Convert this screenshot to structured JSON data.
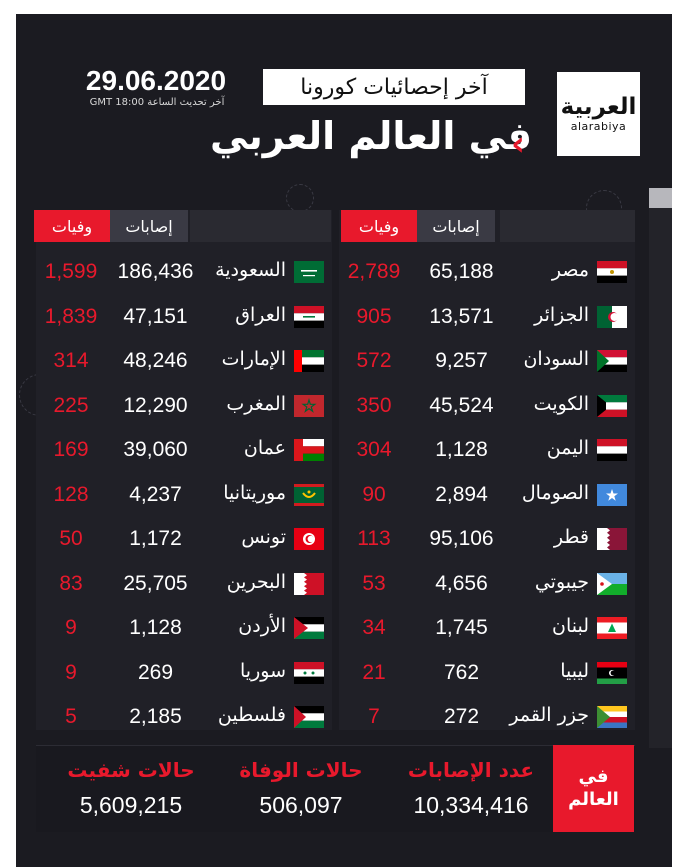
{
  "header": {
    "logo_arabic": "العربية",
    "logo_latin": "alarabiya",
    "tag": "آخر إحصائيات كورونا",
    "title": "في العالم العربي",
    "date": "29.06.2020",
    "update_line": "آخر تحديث الساعة GMT 18:00"
  },
  "column_headers": {
    "cases": "إصابات",
    "deaths": "وفيات"
  },
  "right_table": [
    {
      "country": "مصر",
      "cases": "65,188",
      "deaths": "2,789",
      "flag": "egypt-flag-icon"
    },
    {
      "country": "الجزائر",
      "cases": "13,571",
      "deaths": "905",
      "flag": "algeria-flag-icon"
    },
    {
      "country": "السودان",
      "cases": "9,257",
      "deaths": "572",
      "flag": "sudan-flag-icon"
    },
    {
      "country": "الكويت",
      "cases": "45,524",
      "deaths": "350",
      "flag": "kuwait-flag-icon"
    },
    {
      "country": "اليمن",
      "cases": "1,128",
      "deaths": "304",
      "flag": "yemen-flag-icon"
    },
    {
      "country": "الصومال",
      "cases": "2,894",
      "deaths": "90",
      "flag": "somalia-flag-icon"
    },
    {
      "country": "قطر",
      "cases": "95,106",
      "deaths": "113",
      "flag": "qatar-flag-icon"
    },
    {
      "country": "جيبوتي",
      "cases": "4,656",
      "deaths": "53",
      "flag": "djibouti-flag-icon"
    },
    {
      "country": "لبنان",
      "cases": "1,745",
      "deaths": "34",
      "flag": "lebanon-flag-icon"
    },
    {
      "country": "ليبيا",
      "cases": "762",
      "deaths": "21",
      "flag": "libya-flag-icon"
    },
    {
      "country": "جزر القمر",
      "cases": "272",
      "deaths": "7",
      "flag": "comoros-flag-icon"
    }
  ],
  "left_table": [
    {
      "country": "السعودية",
      "cases": "186,436",
      "deaths": "1,599",
      "flag": "saudi-flag-icon"
    },
    {
      "country": "العراق",
      "cases": "47,151",
      "deaths": "1,839",
      "flag": "iraq-flag-icon"
    },
    {
      "country": "الإمارات",
      "cases": "48,246",
      "deaths": "314",
      "flag": "uae-flag-icon"
    },
    {
      "country": "المغرب",
      "cases": "12,290",
      "deaths": "225",
      "flag": "morocco-flag-icon"
    },
    {
      "country": "عمان",
      "cases": "39,060",
      "deaths": "169",
      "flag": "oman-flag-icon"
    },
    {
      "country": "موريتانيا",
      "cases": "4,237",
      "deaths": "128",
      "flag": "mauritania-flag-icon"
    },
    {
      "country": "تونس",
      "cases": "1,172",
      "deaths": "50",
      "flag": "tunisia-flag-icon"
    },
    {
      "country": "البحرين",
      "cases": "25,705",
      "deaths": "83",
      "flag": "bahrain-flag-icon"
    },
    {
      "country": "الأردن",
      "cases": "1,128",
      "deaths": "9",
      "flag": "jordan-flag-icon"
    },
    {
      "country": "سوريا",
      "cases": "269",
      "deaths": "9",
      "flag": "syria-flag-icon"
    },
    {
      "country": "فلسطين",
      "cases": "2,185",
      "deaths": "5",
      "flag": "palestine-flag-icon"
    }
  ],
  "world": {
    "badge_line1": "في",
    "badge_line2": "العالم",
    "cases_label": "عدد الإصابات",
    "cases_value": "10,334,416",
    "deaths_label": "حالات الوفاة",
    "deaths_value": "506,097",
    "recovered_label": "حالات شفيت",
    "recovered_value": "5,609,215"
  },
  "colors": {
    "accent": "#e8192c",
    "background": "#1b1b21",
    "text": "#ffffff"
  }
}
